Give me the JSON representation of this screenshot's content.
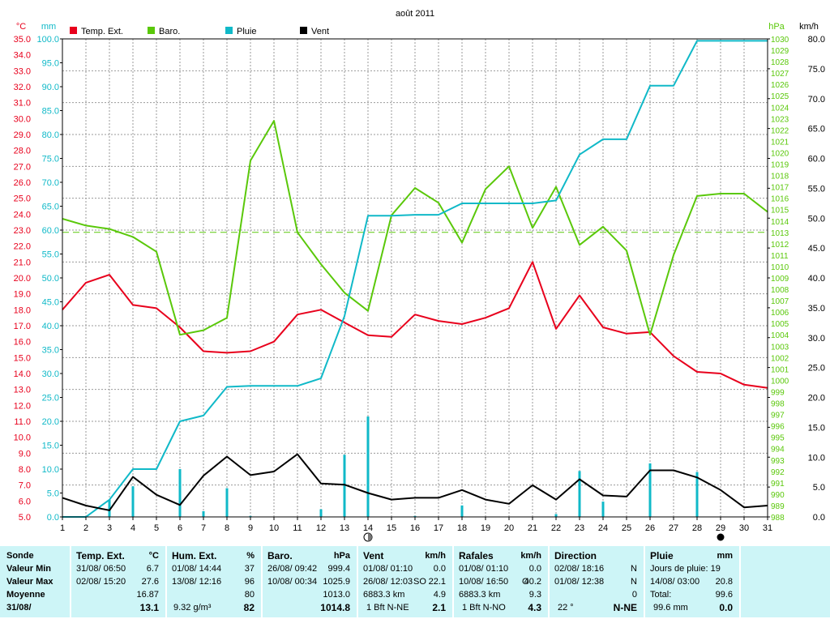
{
  "chart_data": {
    "type": "line",
    "title": "août 2011",
    "x": [
      1,
      2,
      3,
      4,
      5,
      6,
      7,
      8,
      9,
      10,
      11,
      12,
      13,
      14,
      15,
      16,
      17,
      18,
      19,
      20,
      21,
      22,
      23,
      24,
      25,
      26,
      27,
      28,
      29,
      30,
      31
    ],
    "axes": {
      "temperature": {
        "unit": "°C",
        "ylim": [
          5.0,
          35.0
        ],
        "ticks": [
          "5.0",
          "6.0",
          "7.0",
          "8.0",
          "9.0",
          "10.0",
          "11.0",
          "12.0",
          "13.0",
          "14.0",
          "15.0",
          "16.0",
          "17.0",
          "18.0",
          "19.0",
          "20.0",
          "21.0",
          "22.0",
          "23.0",
          "24.0",
          "25.0",
          "26.0",
          "27.0",
          "28.0",
          "29.0",
          "30.0",
          "31.0",
          "32.0",
          "33.0",
          "34.0",
          "35.0"
        ]
      },
      "rain": {
        "unit": "mm",
        "ylim": [
          0.0,
          100.0
        ],
        "ticks": [
          "0.0",
          "5.0",
          "10.0",
          "15.0",
          "20.0",
          "25.0",
          "30.0",
          "35.0",
          "40.0",
          "45.0",
          "50.0",
          "55.0",
          "60.0",
          "65.0",
          "70.0",
          "75.0",
          "80.0",
          "85.0",
          "90.0",
          "95.0",
          "100.0"
        ]
      },
      "pressure": {
        "unit": "hPa",
        "ylim": [
          988,
          1030
        ],
        "ticks": [
          "988",
          "989",
          "990",
          "991",
          "992",
          "993",
          "994",
          "995",
          "996",
          "997",
          "998",
          "999",
          "1000",
          "1001",
          "1002",
          "1003",
          "1004",
          "1005",
          "1006",
          "1007",
          "1008",
          "1009",
          "1010",
          "1011",
          "1012",
          "1013",
          "1014",
          "1015",
          "1016",
          "1017",
          "1018",
          "1019",
          "1020",
          "1021",
          "1022",
          "1023",
          "1024",
          "1025",
          "1026",
          "1027",
          "1028",
          "1029",
          "1030"
        ]
      },
      "wind": {
        "unit": "km/h",
        "ylim": [
          0.0,
          80.0
        ],
        "ticks": [
          "0.0",
          "5.0",
          "10.0",
          "15.0",
          "20.0",
          "25.0",
          "30.0",
          "35.0",
          "40.0",
          "45.0",
          "50.0",
          "55.0",
          "60.0",
          "65.0",
          "70.0",
          "75.0",
          "80.0"
        ]
      }
    },
    "x_ticks": [
      "1",
      "2",
      "3",
      "4",
      "5",
      "6",
      "7",
      "8",
      "9",
      "10",
      "11",
      "12",
      "13",
      "14",
      "15",
      "16",
      "17",
      "18",
      "19",
      "20",
      "21",
      "22",
      "23",
      "24",
      "25",
      "26",
      "27",
      "28",
      "29",
      "30",
      "31"
    ],
    "grid": true,
    "legend_placement": "top",
    "reference_line": {
      "axis": "pressure",
      "value": 1013,
      "color": "#5ac80a"
    },
    "series": [
      {
        "name": "Temp. Ext.",
        "axis": "temperature",
        "color": "#e8001c",
        "values": [
          18.0,
          19.7,
          20.2,
          18.3,
          18.1,
          16.9,
          15.4,
          15.3,
          15.4,
          16.0,
          17.7,
          18.0,
          17.2,
          16.4,
          16.3,
          17.7,
          17.3,
          17.1,
          17.5,
          18.1,
          21.0,
          16.8,
          18.9,
          16.9,
          16.5,
          16.6,
          15.1,
          14.1,
          14.0,
          13.3,
          13.1
        ]
      },
      {
        "name": "Baro.",
        "axis": "pressure",
        "color": "#5ac80a",
        "values": [
          1014.2,
          1013.6,
          1013.3,
          1012.6,
          1011.3,
          1004.0,
          1004.4,
          1005.5,
          1019.3,
          1022.8,
          1013.0,
          1010.2,
          1007.7,
          1006.1,
          1014.5,
          1016.9,
          1015.6,
          1012.1,
          1016.8,
          1018.8,
          1013.4,
          1017.0,
          1011.9,
          1013.5,
          1011.4,
          1004.0,
          1011.0,
          1016.2,
          1016.4,
          1016.4,
          1014.8
        ]
      },
      {
        "name": "Pluie",
        "axis": "rain",
        "color": "#10b9c8",
        "type": "cumulative",
        "values": [
          0.0,
          0.0,
          3.6,
          10.0,
          10.0,
          20.0,
          21.2,
          27.2,
          27.4,
          27.4,
          27.4,
          29.0,
          42.0,
          63.0,
          63.0,
          63.2,
          63.2,
          65.6,
          65.6,
          65.6,
          65.6,
          66.2,
          75.8,
          79.0,
          79.0,
          90.2,
          90.2,
          99.6,
          99.6,
          99.6,
          99.6
        ]
      },
      {
        "name": "Pluie",
        "axis": "rain",
        "color": "#10b9c8",
        "type": "daily-bars",
        "values": [
          0.0,
          0.0,
          3.6,
          6.4,
          0.0,
          10.0,
          1.2,
          6.0,
          0.2,
          0.0,
          0.0,
          1.6,
          13.0,
          21.0,
          0.0,
          0.2,
          0.0,
          2.4,
          0.0,
          0.0,
          0.0,
          0.6,
          9.6,
          3.2,
          0.0,
          11.2,
          0.0,
          9.4,
          0.0,
          0.0,
          0.0
        ]
      },
      {
        "name": "Vent",
        "axis": "wind",
        "color": "#000000",
        "values": [
          3.2,
          1.9,
          1.1,
          6.7,
          3.7,
          2.0,
          6.9,
          10.1,
          7.0,
          7.6,
          10.5,
          5.6,
          5.4,
          4.0,
          2.9,
          3.2,
          3.2,
          4.5,
          2.9,
          2.2,
          5.3,
          2.9,
          6.3,
          3.6,
          3.4,
          7.8,
          7.8,
          6.6,
          4.5,
          1.6,
          1.9
        ]
      }
    ],
    "markers": [
      {
        "x": 14,
        "symbol": "first-quarter-moon"
      },
      {
        "x": 29,
        "symbol": "new-moon"
      }
    ]
  },
  "summary": {
    "label_col": [
      "Sonde",
      "Valeur Min",
      "Valeur Max",
      "Moyenne",
      "31/08/"
    ],
    "temp": {
      "head": "Temp. Ext.",
      "unit": "°C",
      "min_date": "31/08/  06:50",
      "min_val": "6.7",
      "max_date": "02/08/  15:20",
      "max_val": "27.6",
      "moy": "16.87",
      "cur": "13.1"
    },
    "hum": {
      "head": "Hum. Ext.",
      "unit": "%",
      "min_date": "01/08/  14:44",
      "min_val": "37",
      "max_date": "13/08/  12:16",
      "max_val": "96",
      "moy": "80",
      "cur_abs": "9.32 g/m³",
      "cur": "82"
    },
    "baro": {
      "head": "Baro.",
      "unit": "hPa",
      "min_date": "26/08/  09:42",
      "min_val": "999.4",
      "max_date": "10/08/  00:34",
      "max_val": "1025.9",
      "moy": "1013.0",
      "cur": "1014.8"
    },
    "vent": {
      "head": "Vent",
      "unit": "km/h",
      "min_date": "01/08/  01:10",
      "min_val": "0.0",
      "max_date": "26/08/  12:03",
      "max_dir": "SO",
      "max_val": "22.1",
      "moy_dist": "6883.3 km",
      "moy": "4.9",
      "cur_bft": "1 Bft N-NE",
      "cur": "2.1"
    },
    "rafales": {
      "head": "Rafales",
      "unit": "km/h",
      "min_date": "01/08/  01:10",
      "min_val": "0.0",
      "max_date": "10/08/  16:50",
      "max_dir": "O",
      "max_val": "40.2",
      "moy_dist": "6883.3 km",
      "moy": "9.3",
      "cur_bft": "1 Bft N-NO",
      "cur": "4.3"
    },
    "direction": {
      "head": "Direction",
      "min_date": "02/08/  18:16",
      "min_val": "N",
      "max_date": "01/08/  12:38",
      "max_val": "N",
      "moy": "0",
      "cur_deg": "22 °",
      "cur": "N-NE"
    },
    "pluie": {
      "head": "Pluie",
      "unit": "mm",
      "days_label": "Jours de pluie: 19",
      "max_date": "14/08/  03:00",
      "max_val": "20.8",
      "total_label": "Total:",
      "total_val": "99.6",
      "cur_total": "99.6 mm",
      "cur": "0.0"
    }
  }
}
